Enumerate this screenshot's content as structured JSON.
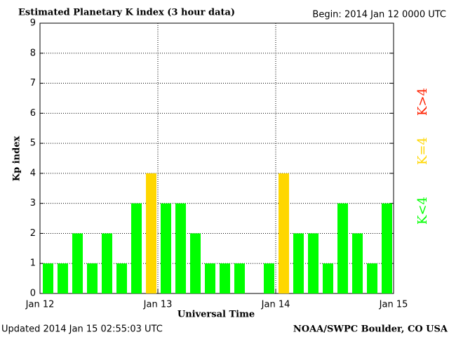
{
  "chart_data": {
    "type": "bar",
    "title": "Estimated Planetary K index (3 hour data)",
    "subtitle": "Begin:  2014 Jan 12 0000 UTC",
    "ylabel": "Kp index",
    "xlabel": "Universal Time",
    "footer_left": "Updated 2014 Jan 15 02:55:03 UTC",
    "footer_right": "NOAA/SWPC Boulder, CO USA",
    "x": [
      0,
      3,
      6,
      9,
      12,
      15,
      18,
      21,
      24,
      27,
      30,
      33,
      36,
      39,
      42,
      45,
      48,
      51,
      54,
      57,
      60,
      63,
      66,
      69
    ],
    "bar_width": 3,
    "values": [
      1,
      1,
      2,
      1,
      2,
      1,
      3,
      4,
      3,
      3,
      2,
      1,
      1,
      1,
      null,
      1,
      4,
      2,
      2,
      1,
      3,
      2,
      1,
      3
    ],
    "colors": [
      "#00ff00",
      "#00ff00",
      "#00ff00",
      "#00ff00",
      "#00ff00",
      "#00ff00",
      "#00ff00",
      "#ffd700",
      "#00ff00",
      "#00ff00",
      "#00ff00",
      "#00ff00",
      "#00ff00",
      "#00ff00",
      null,
      "#00ff00",
      "#ffd700",
      "#00ff00",
      "#00ff00",
      "#00ff00",
      "#00ff00",
      "#00ff00",
      "#00ff00",
      "#00ff00"
    ],
    "xlim": [
      0,
      72
    ],
    "xticks": [
      {
        "value": 0,
        "label": "Jan 12"
      },
      {
        "value": 24,
        "label": "Jan 13"
      },
      {
        "value": 48,
        "label": "Jan 14"
      },
      {
        "value": 72,
        "label": "Jan 15"
      }
    ],
    "ylim": [
      0,
      9
    ],
    "yticks": [
      0,
      1,
      2,
      3,
      4,
      5,
      6,
      7,
      8,
      9
    ],
    "grid": true,
    "legend": [
      {
        "label": "K<4",
        "color": "#00ff00"
      },
      {
        "label": "K=4",
        "color": "#ffd700"
      },
      {
        "label": "K>4",
        "color": "#ff2000"
      }
    ]
  }
}
